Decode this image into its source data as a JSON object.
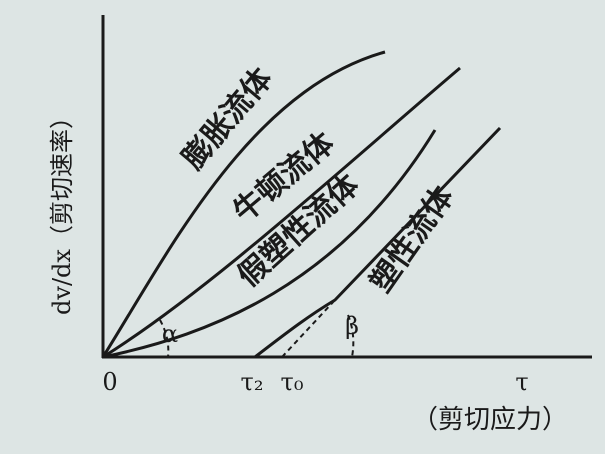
{
  "y_axis_label": "dv/dx（剪切速率）",
  "x_axis_label": "（剪切应力）",
  "origin_label": "0",
  "x_axis_end_label": "τ",
  "x_marks": [
    "τ₂",
    "τ₀"
  ],
  "angles": [
    "α",
    "β"
  ],
  "curves": [
    "膨胀流体",
    "牛顿流体",
    "假塑性流体",
    "塑性流体"
  ]
}
